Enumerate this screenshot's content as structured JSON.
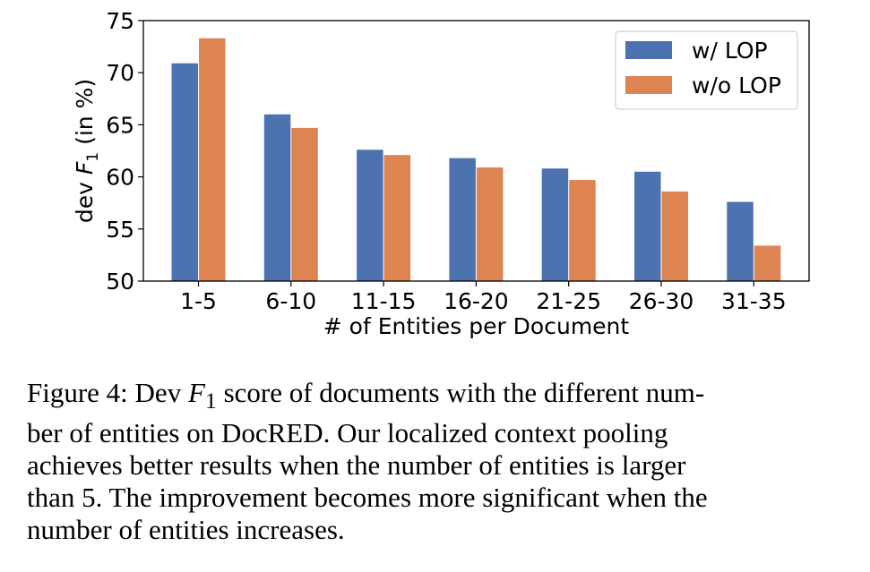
{
  "chart_data": {
    "type": "bar",
    "categories": [
      "1-5",
      "6-10",
      "11-15",
      "16-20",
      "21-25",
      "26-30",
      "31-35"
    ],
    "series": [
      {
        "name": "w/ LOP",
        "color": "#4c72b0",
        "values": [
          70.9,
          66.0,
          62.6,
          61.8,
          60.8,
          60.5,
          57.6
        ]
      },
      {
        "name": "w/o LOP",
        "color": "#dd8452",
        "values": [
          73.3,
          64.7,
          62.1,
          60.9,
          59.7,
          58.6,
          53.4
        ]
      }
    ],
    "xlabel": "# of Entities per Document",
    "ylabel_prefix": "dev ",
    "ylabel_var": "F",
    "ylabel_sub": "1",
    "ylabel_suffix": " (in %)",
    "ylim": [
      50,
      75
    ],
    "yticks": [
      50,
      55,
      60,
      65,
      70,
      75
    ],
    "grid": false,
    "legend_position": "top-right"
  },
  "caption": {
    "line1_prefix": "Figure 4: Dev ",
    "line1_var": "F",
    "line1_sub": "1",
    "line1_suffix": " score of documents with the different num-",
    "line2": "ber of entities on DocRED. Our localized context pooling",
    "line3": "achieves better results when the number of entities is larger",
    "line4": "than 5. The improvement becomes more significant when the",
    "line5": "number of entities increases."
  }
}
